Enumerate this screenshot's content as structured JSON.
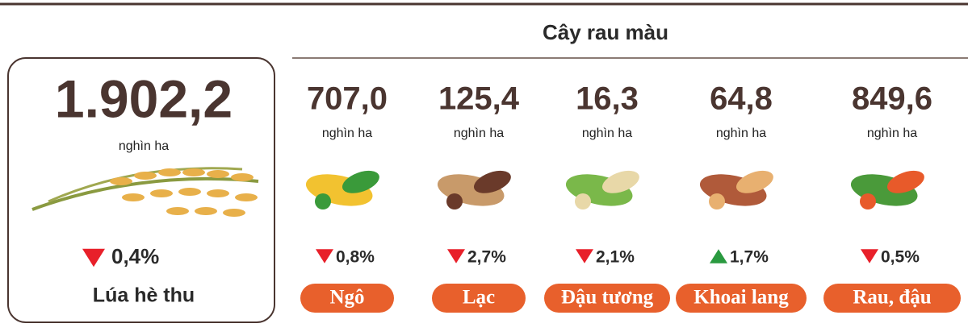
{
  "header": {
    "title": "Cây rau màu"
  },
  "main": {
    "value": "1.902,2",
    "unit": "nghìn ha",
    "change": "0,4%",
    "direction": "down",
    "label": "Lúa hè thu"
  },
  "crops": [
    {
      "value": "707,0",
      "unit": "nghìn ha",
      "change": "0,8%",
      "direction": "down",
      "label": "Ngô"
    },
    {
      "value": "125,4",
      "unit": "nghìn ha",
      "change": "2,7%",
      "direction": "down",
      "label": "Lạc"
    },
    {
      "value": "16,3",
      "unit": "nghìn ha",
      "change": "2,1%",
      "direction": "down",
      "label": "Đậu tương"
    },
    {
      "value": "64,8",
      "unit": "nghìn ha",
      "change": "1,7%",
      "direction": "up",
      "label": "Khoai lang"
    },
    {
      "value": "849,6",
      "unit": "nghìn ha",
      "change": "0,5%",
      "direction": "down",
      "label": "Rau, đậu"
    }
  ]
}
